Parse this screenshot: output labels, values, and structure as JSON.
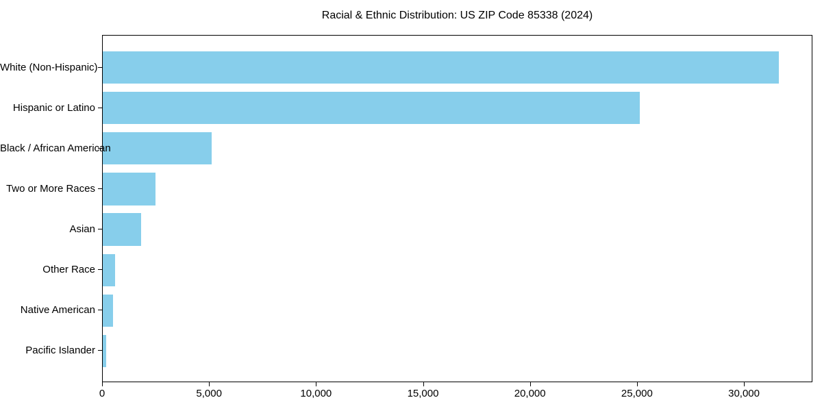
{
  "chart_data": {
    "type": "bar",
    "orientation": "horizontal",
    "title": "Racial & Ethnic Distribution: US ZIP Code 85338 (2024)",
    "categories": [
      "White (Non-Hispanic)",
      "Hispanic or Latino",
      "Black / African American",
      "Two or More Races",
      "Asian",
      "Other Race",
      "Native American",
      "Pacific Islander"
    ],
    "values": [
      31600,
      25100,
      5080,
      2470,
      1790,
      570,
      490,
      160
    ],
    "xlabel": "",
    "ylabel": "",
    "xlim": [
      0,
      33200
    ],
    "x_ticks": [
      0,
      5000,
      10000,
      15000,
      20000,
      25000,
      30000
    ],
    "x_tick_labels": [
      "0",
      "5,000",
      "10,000",
      "15,000",
      "20,000",
      "25,000",
      "30,000"
    ],
    "bar_color": "#87CEEB",
    "background_color": "#FFFFFF",
    "axis_color": "#000000",
    "grid": false,
    "legend": null
  }
}
